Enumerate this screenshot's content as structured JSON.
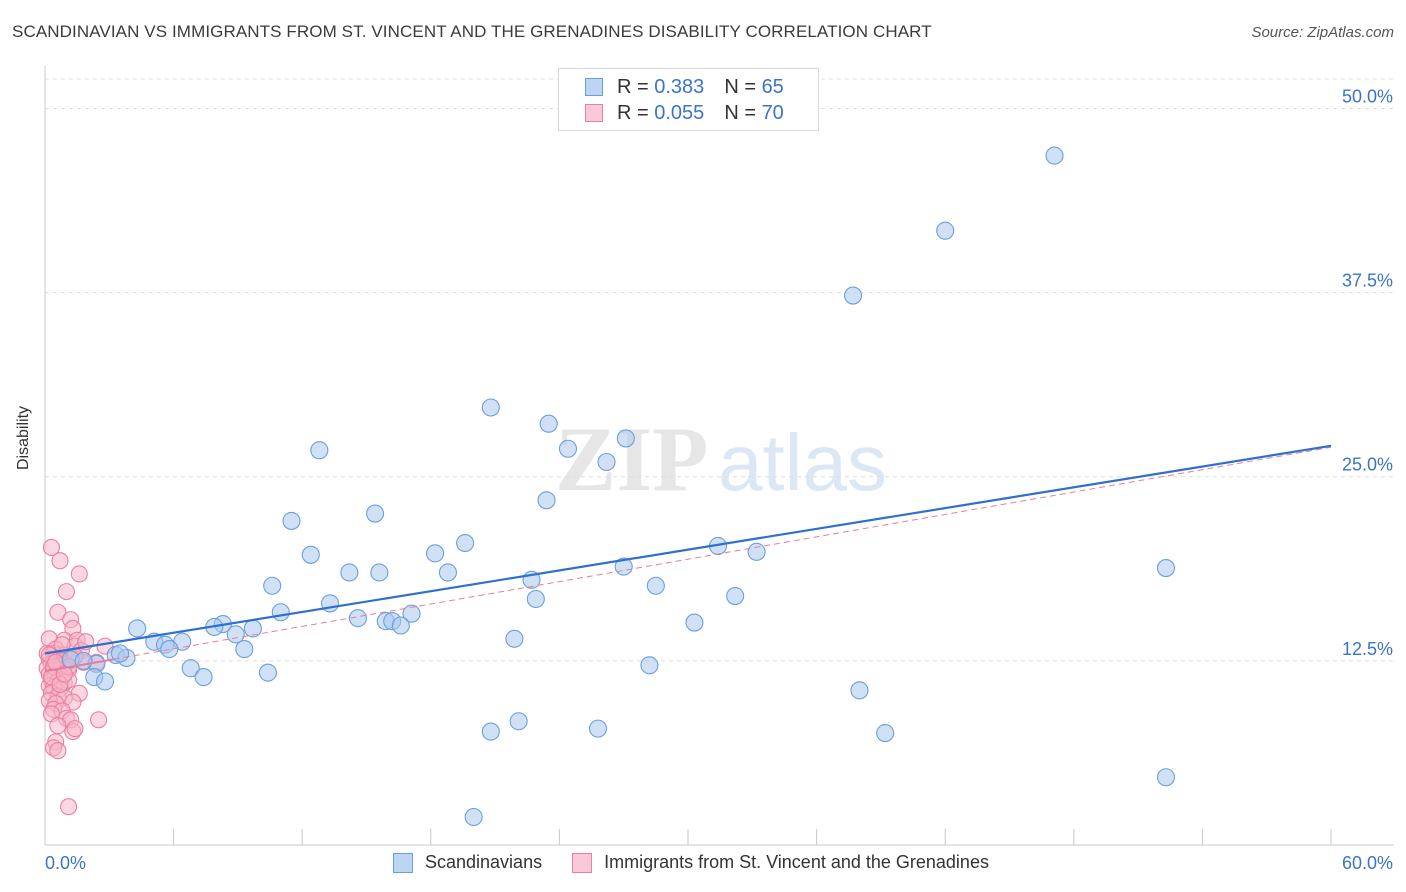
{
  "header": {
    "title": "SCANDINAVIAN VS IMMIGRANTS FROM ST. VINCENT AND THE GRENADINES DISABILITY CORRELATION CHART",
    "source": "Source: ZipAtlas.com"
  },
  "legend": {
    "blue": {
      "r_label": "R = ",
      "r_value": "0.383",
      "n_label": "N = ",
      "n_value": "65"
    },
    "pink": {
      "r_label": "R = ",
      "r_value": "0.055",
      "n_label": "N = ",
      "n_value": "70"
    }
  },
  "colors": {
    "blue_fill": "#a9c8ef",
    "blue_stroke": "#6b9fdc",
    "blue_line": "#2f6fce",
    "pink_fill": "#f6b6c9",
    "pink_stroke": "#ec7fa0",
    "pink_line": "#e87d9b",
    "axis_label": "#3a74c9",
    "grid": "#dddddd"
  },
  "chart_data": {
    "type": "scatter",
    "title": "SCANDINAVIAN VS IMMIGRANTS FROM ST. VINCENT AND THE GRENADINES DISABILITY CORRELATION CHART",
    "xlabel": "",
    "ylabel": "Disability",
    "xlim": [
      0,
      60
    ],
    "ylim": [
      0,
      52
    ],
    "x_tick_labels": [
      "0.0%",
      "60.0%"
    ],
    "y_ticks": [
      12.5,
      25.0,
      37.5,
      50.0
    ],
    "y_tick_labels": [
      "12.5%",
      "25.0%",
      "37.5%",
      "50.0%"
    ],
    "watermark": {
      "zip": "ZIP",
      "atlas": "atlas"
    },
    "series": [
      {
        "name": "Scandinavians",
        "color": "#a9c8ef",
        "r": 0.383,
        "n": 65,
        "trend": {
          "x": [
            0.0,
            60.0
          ],
          "y": [
            13.0,
            27.1
          ],
          "style": "solid"
        },
        "points": [
          [
            47.1,
            46.8
          ],
          [
            42.0,
            41.7
          ],
          [
            37.7,
            37.3
          ],
          [
            52.3,
            18.8
          ],
          [
            52.3,
            4.6
          ],
          [
            38.0,
            10.5
          ],
          [
            39.2,
            7.6
          ],
          [
            20.8,
            29.7
          ],
          [
            23.5,
            28.6
          ],
          [
            27.1,
            27.6
          ],
          [
            24.4,
            26.9
          ],
          [
            26.2,
            26.0
          ],
          [
            12.8,
            26.8
          ],
          [
            23.4,
            23.4
          ],
          [
            15.4,
            22.5
          ],
          [
            11.5,
            22.0
          ],
          [
            19.6,
            20.5
          ],
          [
            18.2,
            19.8
          ],
          [
            12.4,
            19.7
          ],
          [
            15.6,
            18.5
          ],
          [
            14.2,
            18.5
          ],
          [
            18.8,
            18.5
          ],
          [
            27.0,
            18.9
          ],
          [
            31.4,
            20.3
          ],
          [
            33.2,
            19.9
          ],
          [
            10.6,
            17.6
          ],
          [
            22.7,
            18.0
          ],
          [
            28.5,
            17.6
          ],
          [
            32.2,
            16.9
          ],
          [
            22.9,
            16.7
          ],
          [
            13.3,
            16.4
          ],
          [
            11.0,
            15.8
          ],
          [
            17.1,
            15.7
          ],
          [
            14.6,
            15.4
          ],
          [
            15.9,
            15.2
          ],
          [
            16.2,
            15.2
          ],
          [
            16.6,
            14.9
          ],
          [
            8.3,
            15.0
          ],
          [
            30.3,
            15.1
          ],
          [
            7.9,
            14.8
          ],
          [
            9.7,
            14.7
          ],
          [
            8.9,
            14.3
          ],
          [
            4.3,
            14.7
          ],
          [
            5.1,
            13.8
          ],
          [
            5.6,
            13.6
          ],
          [
            6.4,
            13.8
          ],
          [
            5.8,
            13.3
          ],
          [
            9.3,
            13.3
          ],
          [
            3.3,
            12.9
          ],
          [
            3.8,
            12.7
          ],
          [
            1.2,
            12.6
          ],
          [
            2.4,
            12.3
          ],
          [
            6.8,
            12.0
          ],
          [
            10.4,
            11.7
          ],
          [
            7.4,
            11.4
          ],
          [
            2.3,
            11.4
          ],
          [
            2.8,
            11.1
          ],
          [
            21.9,
            14.0
          ],
          [
            28.2,
            12.2
          ],
          [
            22.1,
            8.4
          ],
          [
            25.8,
            7.9
          ],
          [
            20.8,
            7.7
          ],
          [
            20.0,
            1.9
          ],
          [
            1.8,
            12.5
          ],
          [
            3.5,
            13.0
          ]
        ]
      },
      {
        "name": "Immigrants from St. Vincent and the Grenadines",
        "color": "#f6b6c9",
        "r": 0.055,
        "n": 70,
        "trend": {
          "x": [
            0.0,
            60.0
          ],
          "y": [
            11.8,
            27.0
          ],
          "style": "dashed"
        },
        "points": [
          [
            0.3,
            20.2
          ],
          [
            0.7,
            19.3
          ],
          [
            1.6,
            18.4
          ],
          [
            1.0,
            17.2
          ],
          [
            0.6,
            15.8
          ],
          [
            1.2,
            15.3
          ],
          [
            1.3,
            14.7
          ],
          [
            0.2,
            14.0
          ],
          [
            0.9,
            13.9
          ],
          [
            1.5,
            13.9
          ],
          [
            1.4,
            13.5
          ],
          [
            2.8,
            13.5
          ],
          [
            0.5,
            13.3
          ],
          [
            0.1,
            13.0
          ],
          [
            0.4,
            13.0
          ],
          [
            0.9,
            12.9
          ],
          [
            1.7,
            13.2
          ],
          [
            0.2,
            12.6
          ],
          [
            0.5,
            12.6
          ],
          [
            0.8,
            12.5
          ],
          [
            1.3,
            12.7
          ],
          [
            0.3,
            12.3
          ],
          [
            0.6,
            12.2
          ],
          [
            1.0,
            12.3
          ],
          [
            1.8,
            12.4
          ],
          [
            2.4,
            12.4
          ],
          [
            0.1,
            12.0
          ],
          [
            0.4,
            11.9
          ],
          [
            0.7,
            11.9
          ],
          [
            1.1,
            11.9
          ],
          [
            0.2,
            11.6
          ],
          [
            0.5,
            11.5
          ],
          [
            0.8,
            11.4
          ],
          [
            0.3,
            11.2
          ],
          [
            0.6,
            11.1
          ],
          [
            0.9,
            11.0
          ],
          [
            1.1,
            11.2
          ],
          [
            0.2,
            10.8
          ],
          [
            0.4,
            10.7
          ],
          [
            0.7,
            10.6
          ],
          [
            0.3,
            10.3
          ],
          [
            0.6,
            10.1
          ],
          [
            0.9,
            10.0
          ],
          [
            1.6,
            10.3
          ],
          [
            0.2,
            9.8
          ],
          [
            0.5,
            9.6
          ],
          [
            1.3,
            9.7
          ],
          [
            0.4,
            9.2
          ],
          [
            0.8,
            9.1
          ],
          [
            0.3,
            8.9
          ],
          [
            1.0,
            8.6
          ],
          [
            1.2,
            8.5
          ],
          [
            2.5,
            8.5
          ],
          [
            0.6,
            8.1
          ],
          [
            1.3,
            7.7
          ],
          [
            1.4,
            7.9
          ],
          [
            0.5,
            7.0
          ],
          [
            0.4,
            6.6
          ],
          [
            0.6,
            6.4
          ],
          [
            1.1,
            2.6
          ],
          [
            0.2,
            12.9
          ],
          [
            0.4,
            12.1
          ],
          [
            1.4,
            12.8
          ],
          [
            0.8,
            13.6
          ],
          [
            0.3,
            11.4
          ],
          [
            0.7,
            10.9
          ],
          [
            1.1,
            12.1
          ],
          [
            0.5,
            12.4
          ],
          [
            0.9,
            11.6
          ],
          [
            1.9,
            13.8
          ]
        ]
      }
    ]
  }
}
